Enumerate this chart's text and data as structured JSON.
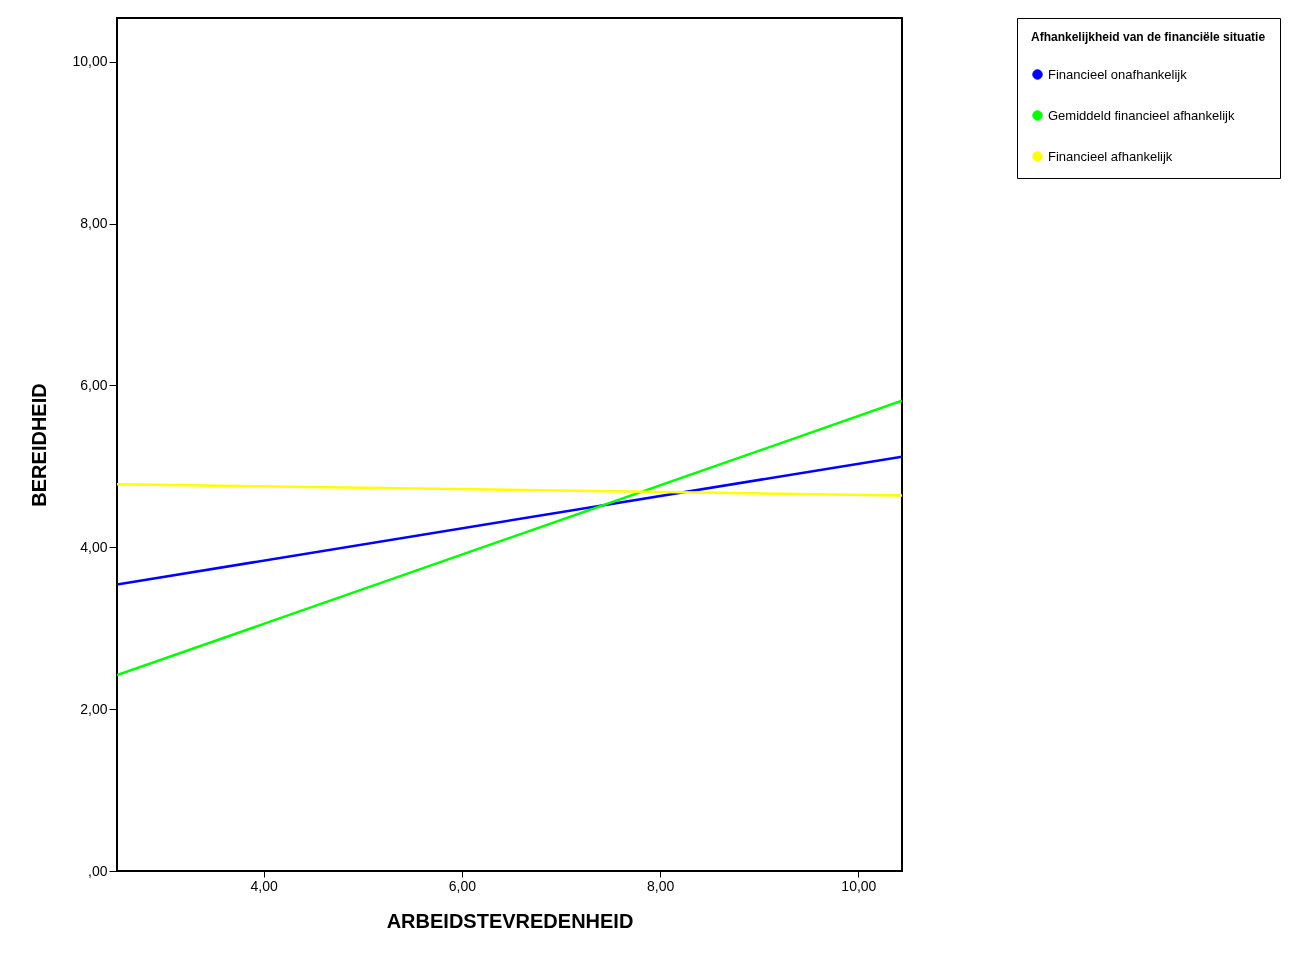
{
  "chart_data": {
    "type": "line",
    "xlabel": "ARBEIDSTEVREDENHEID",
    "ylabel": "BEREIDHEID",
    "legend_title": "Afhankelijkheid van de financiële situatie",
    "x": [
      2.52,
      10.44
    ],
    "series": [
      {
        "name": "Financieel onafhankelijk",
        "color": "#0000ff",
        "values": [
          3.54,
          5.12
        ]
      },
      {
        "name": "Gemiddeld financieel afhankelijk",
        "color": "#00ff00",
        "values": [
          2.42,
          5.81
        ]
      },
      {
        "name": "Financieel afhankelijk",
        "color": "#ffff00",
        "values": [
          4.78,
          4.64
        ]
      }
    ],
    "xlim": [
      2.52,
      10.44
    ],
    "xticks": [
      {
        "value": 4,
        "label": "4,00"
      },
      {
        "value": 6,
        "label": "6,00"
      },
      {
        "value": 8,
        "label": "8,00"
      },
      {
        "value": 10,
        "label": "10,00"
      }
    ],
    "ylim": [
      0,
      10.54
    ],
    "yticks": [
      {
        "value": 0,
        "label": ",00"
      },
      {
        "value": 2,
        "label": "2,00"
      },
      {
        "value": 4,
        "label": "4,00"
      },
      {
        "value": 6,
        "label": "6,00"
      },
      {
        "value": 8,
        "label": "8,00"
      },
      {
        "value": 10,
        "label": "10,00"
      }
    ],
    "grid": false,
    "legend": "top right",
    "marker": "none",
    "line_style": "solid"
  }
}
